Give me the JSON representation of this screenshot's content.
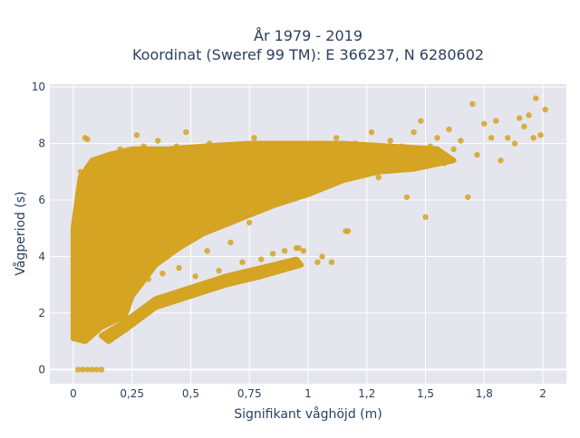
{
  "chart_data": {
    "type": "scatter",
    "title_line1": "År 1979 - 2019",
    "title_line2": "Koordinat (Sweref 99 TM): E 366237, N 6280602",
    "xlabel": "Signifikant våghöjd (m)",
    "ylabel": "Vågperiod (s)",
    "xlim": [
      -0.1,
      2.1
    ],
    "ylim": [
      -0.5,
      10.1
    ],
    "x_ticks": [
      {
        "value": 0,
        "label": "0"
      },
      {
        "value": 0.25,
        "label": "0,25"
      },
      {
        "value": 0.5,
        "label": "0,5"
      },
      {
        "value": 0.75,
        "label": "0,75"
      },
      {
        "value": 1.0,
        "label": "1"
      },
      {
        "value": 1.25,
        "label": "1,2"
      },
      {
        "value": 1.5,
        "label": "1,5"
      },
      {
        "value": 1.75,
        "label": "1,8"
      },
      {
        "value": 2.0,
        "label": "2"
      }
    ],
    "y_ticks": [
      {
        "value": 0,
        "label": "0"
      },
      {
        "value": 2,
        "label": "2"
      },
      {
        "value": 4,
        "label": "4"
      },
      {
        "value": 6,
        "label": "6"
      },
      {
        "value": 8,
        "label": "8"
      },
      {
        "value": 10,
        "label": "10"
      }
    ],
    "grid": true,
    "colors": {
      "marker": "#d4a422",
      "plot_bg": "#e5e5ee",
      "grid": "#ffffff",
      "text": "#2a3f5f"
    },
    "points": [
      [
        0.02,
        0.0
      ],
      [
        0.04,
        0.0
      ],
      [
        0.06,
        0.0
      ],
      [
        0.08,
        0.0
      ],
      [
        0.1,
        0.0
      ],
      [
        0.12,
        0.0
      ],
      [
        0.05,
        8.2
      ],
      [
        0.06,
        8.15
      ],
      [
        0.03,
        7.0
      ],
      [
        0.04,
        6.5
      ],
      [
        0.02,
        1.3
      ],
      [
        0.03,
        1.8
      ],
      [
        0.03,
        3.0
      ],
      [
        0.04,
        4.0
      ],
      [
        0.05,
        2.5
      ],
      [
        0.05,
        5.5
      ],
      [
        0.06,
        1.2
      ],
      [
        0.06,
        6.0
      ],
      [
        0.07,
        3.5
      ],
      [
        0.08,
        7.2
      ],
      [
        0.09,
        1.4
      ],
      [
        0.1,
        4.5
      ],
      [
        0.11,
        6.8
      ],
      [
        0.12,
        2.2
      ],
      [
        0.13,
        7.4
      ],
      [
        0.14,
        1.6
      ],
      [
        0.15,
        5.2
      ],
      [
        0.16,
        3.8
      ],
      [
        0.17,
        7.6
      ],
      [
        0.18,
        2.0
      ],
      [
        0.19,
        6.2
      ],
      [
        0.2,
        7.8
      ],
      [
        0.22,
        4.8
      ],
      [
        0.23,
        2.4
      ],
      [
        0.24,
        7.5
      ],
      [
        0.25,
        6.6
      ],
      [
        0.26,
        3.0
      ],
      [
        0.27,
        8.3
      ],
      [
        0.28,
        5.6
      ],
      [
        0.3,
        7.9
      ],
      [
        0.32,
        3.2
      ],
      [
        0.33,
        6.9
      ],
      [
        0.35,
        4.6
      ],
      [
        0.36,
        8.1
      ],
      [
        0.38,
        3.4
      ],
      [
        0.4,
        7.2
      ],
      [
        0.42,
        5.0
      ],
      [
        0.44,
        7.9
      ],
      [
        0.45,
        3.6
      ],
      [
        0.47,
        6.4
      ],
      [
        0.48,
        8.4
      ],
      [
        0.5,
        5.4
      ],
      [
        0.52,
        3.3
      ],
      [
        0.54,
        7.6
      ],
      [
        0.55,
        6.0
      ],
      [
        0.57,
        4.2
      ],
      [
        0.58,
        8.0
      ],
      [
        0.6,
        5.8
      ],
      [
        0.62,
        3.5
      ],
      [
        0.64,
        7.2
      ],
      [
        0.65,
        6.3
      ],
      [
        0.67,
        4.5
      ],
      [
        0.69,
        7.9
      ],
      [
        0.7,
        6.6
      ],
      [
        0.72,
        3.8
      ],
      [
        0.74,
        6.9
      ],
      [
        0.75,
        5.2
      ],
      [
        0.77,
        8.2
      ],
      [
        0.79,
        6.9
      ],
      [
        0.8,
        3.9
      ],
      [
        0.82,
        7.1
      ],
      [
        0.84,
        6.2
      ],
      [
        0.85,
        4.1
      ],
      [
        0.87,
        7.6
      ],
      [
        0.89,
        6.3
      ],
      [
        0.9,
        4.2
      ],
      [
        0.92,
        7.5
      ],
      [
        0.94,
        6.5
      ],
      [
        0.96,
        4.3
      ],
      [
        0.98,
        7.8
      ],
      [
        1.0,
        6.7
      ],
      [
        1.02,
        7.2
      ],
      [
        1.04,
        6.5
      ],
      [
        1.06,
        4.0
      ],
      [
        1.08,
        7.6
      ],
      [
        1.1,
        6.9
      ],
      [
        1.12,
        8.2
      ],
      [
        1.14,
        7.1
      ],
      [
        1.16,
        4.9
      ],
      [
        1.18,
        7.4
      ],
      [
        1.2,
        8.0
      ],
      [
        1.22,
        7.0
      ],
      [
        1.25,
        7.6
      ],
      [
        1.27,
        8.4
      ],
      [
        1.3,
        6.8
      ],
      [
        1.32,
        7.7
      ],
      [
        1.35,
        8.1
      ],
      [
        1.38,
        7.2
      ],
      [
        1.4,
        7.9
      ],
      [
        1.42,
        6.1
      ],
      [
        1.45,
        8.4
      ],
      [
        1.47,
        7.6
      ],
      [
        1.48,
        8.8
      ],
      [
        1.5,
        5.4
      ],
      [
        1.52,
        7.9
      ],
      [
        1.55,
        8.2
      ],
      [
        1.58,
        7.3
      ],
      [
        1.6,
        8.5
      ],
      [
        1.62,
        7.8
      ],
      [
        1.65,
        8.1
      ],
      [
        1.68,
        6.1
      ],
      [
        1.7,
        9.4
      ],
      [
        1.72,
        7.6
      ],
      [
        1.75,
        8.7
      ],
      [
        1.78,
        8.2
      ],
      [
        1.8,
        8.8
      ],
      [
        1.82,
        7.4
      ],
      [
        1.85,
        8.2
      ],
      [
        1.88,
        8.0
      ],
      [
        1.9,
        8.9
      ],
      [
        1.92,
        8.6
      ],
      [
        1.94,
        9.0
      ],
      [
        1.96,
        8.2
      ],
      [
        1.97,
        9.6
      ],
      [
        1.99,
        8.3
      ],
      [
        2.01,
        9.2
      ],
      [
        0.95,
        4.3
      ],
      [
        0.98,
        4.2
      ],
      [
        1.04,
        3.8
      ],
      [
        1.1,
        3.8
      ],
      [
        1.17,
        4.9
      ]
    ]
  }
}
